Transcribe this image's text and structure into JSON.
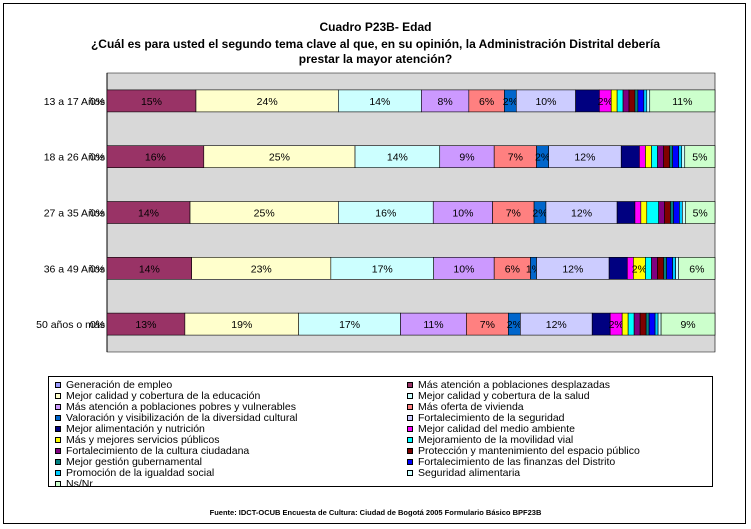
{
  "chart_data": {
    "type": "bar",
    "stacked": true,
    "horizontal": true,
    "percent_stacked": true,
    "title": "Cuadro P23B- Edad",
    "subtitle_line1": "¿Cuál es para usted el segundo tema clave al que, en su opinión, la Administración Distrital debería",
    "subtitle_line2": "prestar la mayor atención?",
    "categories": [
      "13 a 17 Años",
      "18 a 26 Años",
      "27 a 35 Años",
      "36 a 49 Años",
      "50 años o más"
    ],
    "series": [
      {
        "name": "Generación de empleo",
        "color": "#9999ff",
        "values": [
          0,
          0,
          0,
          0,
          0
        ],
        "labels": [
          "0%",
          "0%",
          "0%",
          "0%",
          "0%"
        ]
      },
      {
        "name": "Más atención a poblaciones desplazadas",
        "color": "#993366",
        "values": [
          15,
          16,
          14,
          14,
          13
        ],
        "labels": [
          "15%",
          "16%",
          "14%",
          "14%",
          "13%"
        ]
      },
      {
        "name": "Mejor calidad y cobertura de la educación",
        "color": "#ffffcc",
        "values": [
          24,
          25,
          25,
          23,
          19
        ],
        "labels": [
          "24%",
          "25%",
          "25%",
          "23%",
          "19%"
        ]
      },
      {
        "name": "Mejor calidad y cobertura de la salud",
        "color": "#ccffff",
        "values": [
          14,
          14,
          16,
          17,
          17
        ],
        "labels": [
          "14%",
          "14%",
          "16%",
          "17%",
          "17%"
        ]
      },
      {
        "name": "Más atención a poblaciones pobres y vulnerables",
        "color": "#cc99ff",
        "values": [
          8,
          9,
          10,
          10,
          11
        ],
        "labels": [
          "8%",
          "9%",
          "10%",
          "10%",
          "11%"
        ]
      },
      {
        "name": "Más oferta de vivienda",
        "color": "#ff8080",
        "values": [
          6,
          7,
          7,
          6,
          7
        ],
        "labels": [
          "6%",
          "7%",
          "7%",
          "6%",
          "7%"
        ]
      },
      {
        "name": "Valoración y visibilización de la diversidad cultural",
        "color": "#0066cc",
        "values": [
          2,
          2,
          2,
          1,
          2
        ],
        "labels": [
          "2%",
          "2%",
          "2%",
          "1%",
          "2%"
        ]
      },
      {
        "name": "Fortalecimiento de la seguridad",
        "color": "#ccccff",
        "values": [
          10,
          12,
          12,
          12,
          12
        ],
        "labels": [
          "10%",
          "12%",
          "12%",
          "12%",
          "12%"
        ]
      },
      {
        "name": "Mejor alimentación y nutrición",
        "color": "#000080",
        "values": [
          4,
          3,
          3,
          3,
          3
        ],
        "labels": [
          "",
          "",
          "",
          "",
          ""
        ]
      },
      {
        "name": "Mejor calidad del medio ambiente",
        "color": "#ff00ff",
        "values": [
          2,
          1,
          1,
          1,
          2
        ],
        "labels": [
          "2%",
          "",
          "",
          "",
          "2%"
        ]
      },
      {
        "name": "Más y mejores servicios públicos",
        "color": "#ffff00",
        "values": [
          1,
          1,
          1,
          2,
          1
        ],
        "labels": [
          "",
          "",
          "",
          "2%",
          ""
        ]
      },
      {
        "name": "Mejoramiento de la movilidad vial",
        "color": "#00ffff",
        "values": [
          1,
          1,
          2,
          1,
          1
        ],
        "labels": [
          "",
          "",
          "",
          "",
          ""
        ]
      },
      {
        "name": "Fortalecimiento de la cultura ciudadana",
        "color": "#800080",
        "values": [
          1,
          1,
          1,
          1,
          1
        ],
        "labels": [
          "",
          "",
          "",
          "",
          ""
        ]
      },
      {
        "name": "Protección y mantenimiento del espacio público",
        "color": "#800000",
        "values": [
          1,
          1,
          1,
          1,
          1
        ],
        "labels": [
          "",
          "",
          "",
          "",
          ""
        ]
      },
      {
        "name": "Mejor gestión gubernamental",
        "color": "#008080",
        "values": [
          0.5,
          0.5,
          0.5,
          0.5,
          0.5
        ],
        "labels": [
          "",
          "",
          "",
          "",
          ""
        ]
      },
      {
        "name": "Fortalecimiento de las finanzas del Distrito",
        "color": "#0000ff",
        "values": [
          1,
          1,
          1,
          1,
          1
        ],
        "labels": [
          "",
          "",
          "",
          "",
          ""
        ]
      },
      {
        "name": "Promoción de la igualdad social",
        "color": "#00ccff",
        "values": [
          0.5,
          0.5,
          0.5,
          0.5,
          0.5
        ],
        "labels": [
          "",
          "",
          "",
          "",
          ""
        ]
      },
      {
        "name": "Seguridad alimentaria",
        "color": "#ccffff",
        "values": [
          0.5,
          0.5,
          0.5,
          0.5,
          0.5
        ],
        "labels": [
          "",
          "",
          "",
          "",
          ""
        ]
      },
      {
        "name": "Ns/Nr",
        "color": "#ccffcc",
        "values": [
          11,
          5,
          5,
          6,
          9
        ],
        "labels": [
          "11%",
          "5%",
          "5%",
          "6%",
          "9%"
        ]
      }
    ],
    "legend_position": "bottom",
    "grid": false,
    "plot_background": "#d8d8d8",
    "source": "Fuente: IDCT-OCUB Encuesta de Cultura: Ciudad de Bogotá 2005 Formulario Básico BPF23B"
  }
}
